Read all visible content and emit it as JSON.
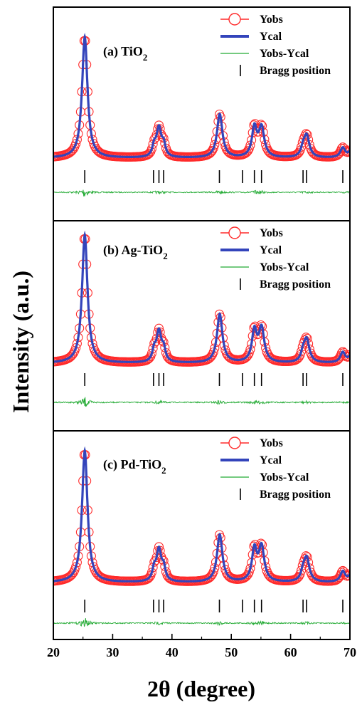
{
  "chart_data": {
    "type": "line",
    "xlabel": "2θ (degree)",
    "ylabel": "Intensity (a.u.)",
    "xlim": [
      20,
      70
    ],
    "xticks": [
      20,
      30,
      40,
      50,
      60,
      70
    ],
    "colors": {
      "yobs": "#ff2a2a",
      "ycal": "#3344bb",
      "diff": "#22aa33",
      "bragg": "#000000"
    },
    "legend": [
      "Yobs",
      "Ycal",
      "Yobs-Ycal",
      "Bragg position"
    ],
    "bragg_positions": [
      25.3,
      36.9,
      37.8,
      38.6,
      48.0,
      51.9,
      53.9,
      55.1,
      62.1,
      62.7,
      68.8,
      70.3
    ],
    "panels": [
      {
        "label": "(a) TiO",
        "label_sub": "2",
        "peaks": [
          [
            25.3,
            1.0,
            0.55
          ],
          [
            37.0,
            0.08,
            0.35
          ],
          [
            37.8,
            0.24,
            0.5
          ],
          [
            38.6,
            0.09,
            0.35
          ],
          [
            48.05,
            0.36,
            0.55
          ],
          [
            53.9,
            0.24,
            0.5
          ],
          [
            55.1,
            0.24,
            0.55
          ],
          [
            62.1,
            0.06,
            0.4
          ],
          [
            62.7,
            0.18,
            0.55
          ],
          [
            68.8,
            0.08,
            0.5
          ],
          [
            70.3,
            0.07,
            0.5
          ]
        ]
      },
      {
        "label": "(b) Ag-TiO",
        "label_sub": "2",
        "peaks": [
          [
            25.3,
            1.0,
            0.55
          ],
          [
            37.0,
            0.08,
            0.35
          ],
          [
            37.8,
            0.24,
            0.5
          ],
          [
            38.6,
            0.09,
            0.35
          ],
          [
            48.05,
            0.38,
            0.55
          ],
          [
            53.9,
            0.24,
            0.5
          ],
          [
            55.1,
            0.26,
            0.55
          ],
          [
            62.1,
            0.06,
            0.4
          ],
          [
            62.7,
            0.18,
            0.55
          ],
          [
            68.8,
            0.08,
            0.5
          ],
          [
            70.3,
            0.07,
            0.5
          ]
        ]
      },
      {
        "label": "(c) Pd-TiO",
        "label_sub": "2",
        "peaks": [
          [
            25.3,
            1.0,
            0.55
          ],
          [
            37.0,
            0.08,
            0.35
          ],
          [
            37.8,
            0.24,
            0.5
          ],
          [
            38.6,
            0.09,
            0.35
          ],
          [
            48.05,
            0.36,
            0.55
          ],
          [
            53.9,
            0.24,
            0.5
          ],
          [
            55.1,
            0.26,
            0.55
          ],
          [
            62.1,
            0.06,
            0.4
          ],
          [
            62.7,
            0.18,
            0.55
          ],
          [
            68.8,
            0.08,
            0.5
          ],
          [
            70.3,
            0.07,
            0.5
          ]
        ]
      }
    ]
  }
}
